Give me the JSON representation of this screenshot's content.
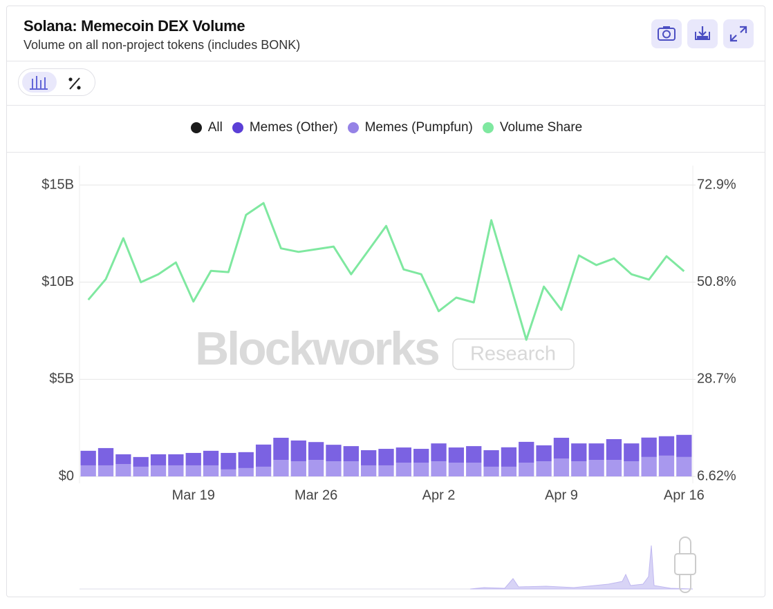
{
  "chart_data": {
    "type": "bar-line",
    "title": "Solana: Memecoin DEX Volume",
    "subtitle": "Volume on all non-project tokens (includes BONK)",
    "watermark": "Blockworks",
    "watermark_badge": "Research",
    "categories": [
      null,
      null,
      null,
      null,
      null,
      null,
      "Mar 19",
      null,
      null,
      null,
      null,
      null,
      null,
      "Mar 26",
      null,
      null,
      null,
      null,
      null,
      null,
      "Apr 2",
      null,
      null,
      null,
      null,
      null,
      null,
      "Apr 9",
      null,
      null,
      null,
      null,
      null,
      null,
      "Apr 16"
    ],
    "series": [
      {
        "name": "All",
        "color": "#1a1a1a",
        "type": "line",
        "values": [
          null,
          null,
          null,
          null,
          null,
          null,
          null,
          null,
          null,
          null,
          null,
          null,
          null,
          null,
          null,
          null,
          null,
          null,
          null,
          null,
          null,
          null,
          null,
          null,
          null,
          null,
          null,
          null,
          null,
          null,
          null,
          null,
          null,
          null,
          null
        ]
      },
      {
        "name": "Memes (Other)",
        "color": "#7b62e2",
        "legend_color": "#5b3fd6",
        "type": "bar",
        "values": [
          0.75,
          0.89,
          0.5,
          0.5,
          0.57,
          0.57,
          0.64,
          0.75,
          0.85,
          0.82,
          1.14,
          1.14,
          1.07,
          0.92,
          0.85,
          0.78,
          0.78,
          0.85,
          0.78,
          0.71,
          0.92,
          0.78,
          0.85,
          0.85,
          1.0,
          1.07,
          0.82,
          1.07,
          0.92,
          0.85,
          1.07,
          0.92,
          1.0,
          1.0,
          1.14
        ]
      },
      {
        "name": "Memes (Pumpfun)",
        "color": "#a898ee",
        "legend_color": "#9582e6",
        "type": "bar",
        "values": [
          0.57,
          0.57,
          0.64,
          0.5,
          0.57,
          0.57,
          0.57,
          0.57,
          0.36,
          0.43,
          0.5,
          0.85,
          0.78,
          0.85,
          0.78,
          0.78,
          0.57,
          0.57,
          0.71,
          0.71,
          0.78,
          0.71,
          0.71,
          0.5,
          0.5,
          0.71,
          0.78,
          0.92,
          0.78,
          0.85,
          0.85,
          0.78,
          1.0,
          1.07,
          1.0
        ]
      },
      {
        "name": "Volume Share",
        "color": "#7fe8a0",
        "type": "line",
        "axis": "y2",
        "values": [
          46.8,
          51.5,
          60.8,
          50.8,
          52.6,
          55.3,
          46.4,
          53.4,
          53.1,
          66.1,
          68.8,
          58.5,
          57.7,
          58.3,
          58.9,
          52.6,
          58.1,
          63.6,
          53.7,
          52.6,
          44.2,
          47.3,
          46.2,
          64.9,
          51.4,
          37.7,
          49.8,
          44.5,
          56.9,
          54.7,
          56.2,
          52.6,
          51.4,
          56.7,
          53.3
        ]
      }
    ],
    "ylim": [
      0,
      15
    ],
    "yticks": [
      {
        "value": 0,
        "label": "$0"
      },
      {
        "value": 5,
        "label": "$5B"
      },
      {
        "value": 10,
        "label": "$10B"
      },
      {
        "value": 15,
        "label": "$15B"
      }
    ],
    "y2lim": [
      6.62,
      72.9
    ],
    "y2ticks": [
      {
        "value": 6.62,
        "label": "6.62%"
      },
      {
        "value": 28.7,
        "label": "28.7%"
      },
      {
        "value": 50.8,
        "label": "50.8%"
      },
      {
        "value": 72.9,
        "label": "72.9%"
      }
    ],
    "grid": true,
    "legend": "top"
  }
}
